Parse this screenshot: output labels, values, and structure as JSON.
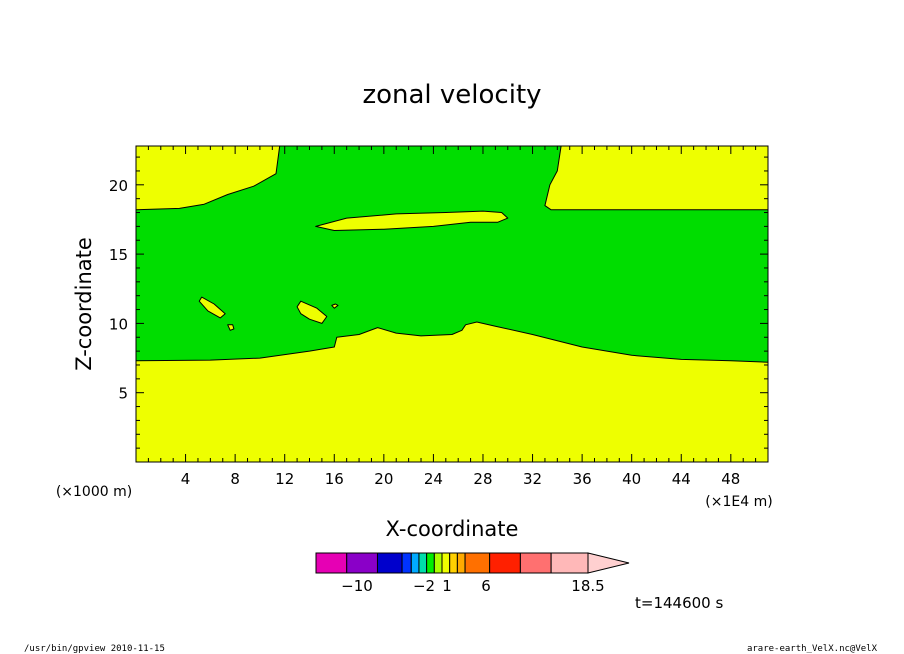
{
  "chart_data": {
    "type": "heatmap",
    "title": "zonal velocity",
    "xlabel": "X-coordinate",
    "ylabel": "Z-coordinate",
    "x_unit_label": "(×1E4 m)",
    "y_unit_label": "(×1000 m)",
    "x_range": [
      0,
      51
    ],
    "y_range": [
      0,
      22.8
    ],
    "x_ticks": [
      4,
      8,
      12,
      16,
      20,
      24,
      28,
      32,
      36,
      40,
      44,
      48
    ],
    "y_ticks": [
      5,
      10,
      15,
      20
    ],
    "time_label": "t=144600 s",
    "colors": {
      "low_band": "#eeff00",
      "mid_band": "#00dd00",
      "axis": "#000000"
    },
    "regions": [
      {
        "band": "low_band",
        "name": "lower-layer",
        "outline": [
          [
            0,
            0
          ],
          [
            0,
            7.3
          ],
          [
            6,
            7.35
          ],
          [
            10,
            7.5
          ],
          [
            14,
            8.0
          ],
          [
            16,
            8.3
          ],
          [
            16.2,
            9.0
          ],
          [
            18,
            9.2
          ],
          [
            19.5,
            9.7
          ],
          [
            21,
            9.3
          ],
          [
            23,
            9.1
          ],
          [
            25.5,
            9.2
          ],
          [
            26.3,
            9.5
          ],
          [
            26.6,
            9.9
          ],
          [
            27.5,
            10.1
          ],
          [
            29,
            9.8
          ],
          [
            32,
            9.2
          ],
          [
            36,
            8.3
          ],
          [
            40,
            7.7
          ],
          [
            44,
            7.4
          ],
          [
            48,
            7.3
          ],
          [
            51,
            7.2
          ],
          [
            51,
            0
          ]
        ]
      },
      {
        "band": "low_band",
        "name": "upper-left",
        "outline": [
          [
            0,
            22.8
          ],
          [
            11.6,
            22.8
          ],
          [
            11.3,
            20.8
          ],
          [
            9.5,
            19.9
          ],
          [
            7.4,
            19.3
          ],
          [
            5.5,
            18.6
          ],
          [
            3.5,
            18.3
          ],
          [
            0,
            18.2
          ]
        ]
      },
      {
        "band": "low_band",
        "name": "upper-right",
        "outline": [
          [
            34.3,
            22.8
          ],
          [
            51,
            22.8
          ],
          [
            51,
            18.2
          ],
          [
            33.5,
            18.2
          ],
          [
            33.0,
            18.5
          ],
          [
            33.4,
            20.0
          ],
          [
            34.0,
            21.0
          ]
        ]
      },
      {
        "band": "low_band",
        "name": "elongated-cell",
        "outline": [
          [
            14.5,
            17.0
          ],
          [
            17,
            17.6
          ],
          [
            21,
            17.9
          ],
          [
            25,
            18.0
          ],
          [
            28,
            18.1
          ],
          [
            29.5,
            18.0
          ],
          [
            30,
            17.6
          ],
          [
            29.2,
            17.3
          ],
          [
            27,
            17.3
          ],
          [
            24,
            17.0
          ],
          [
            20,
            16.8
          ],
          [
            16,
            16.7
          ]
        ]
      },
      {
        "band": "low_band",
        "name": "small-cell-a",
        "outline": [
          [
            5.3,
            11.9
          ],
          [
            5.1,
            11.6
          ],
          [
            5.8,
            10.9
          ],
          [
            6.8,
            10.4
          ],
          [
            7.2,
            10.7
          ],
          [
            6.3,
            11.4
          ]
        ]
      },
      {
        "band": "low_band",
        "name": "small-cell-b",
        "outline": [
          [
            7.4,
            9.9
          ],
          [
            7.8,
            9.9
          ],
          [
            7.9,
            9.6
          ],
          [
            7.6,
            9.5
          ]
        ]
      },
      {
        "band": "low_band",
        "name": "small-cell-c",
        "outline": [
          [
            13.3,
            11.6
          ],
          [
            13.0,
            11.2
          ],
          [
            13.3,
            10.7
          ],
          [
            14.0,
            10.3
          ],
          [
            15.0,
            10.0
          ],
          [
            15.4,
            10.5
          ],
          [
            14.6,
            11.1
          ]
        ]
      },
      {
        "band": "low_band",
        "name": "small-cell-d",
        "outline": [
          [
            15.8,
            11.3
          ],
          [
            16.1,
            11.4
          ],
          [
            16.3,
            11.3
          ],
          [
            16.0,
            11.1
          ]
        ]
      }
    ]
  },
  "colorbar": {
    "tick_labels": [
      {
        "value": -10,
        "text": "−10"
      },
      {
        "value": -2,
        "text": "−2"
      },
      {
        "value": 1,
        "text": "1"
      },
      {
        "value": 6,
        "text": "6"
      },
      {
        "value": 18.5,
        "text": "18.5"
      }
    ],
    "segments": [
      {
        "color": "#e600b4",
        "weight": 2
      },
      {
        "color": "#8a00c8",
        "weight": 2
      },
      {
        "color": "#0000cc",
        "weight": 1.6
      },
      {
        "color": "#0033ff",
        "weight": 0.6
      },
      {
        "color": "#00aaff",
        "weight": 0.5
      },
      {
        "color": "#00ddaa",
        "weight": 0.5
      },
      {
        "color": "#00ee00",
        "weight": 0.5
      },
      {
        "color": "#aaff00",
        "weight": 0.5
      },
      {
        "color": "#eeff00",
        "weight": 0.5
      },
      {
        "color": "#ffd000",
        "weight": 0.5
      },
      {
        "color": "#ffaa00",
        "weight": 0.5
      },
      {
        "color": "#ff7000",
        "weight": 1.6
      },
      {
        "color": "#ff2000",
        "weight": 2
      },
      {
        "color": "#ff7070",
        "weight": 2
      },
      {
        "color": "#ffb8b8",
        "weight": 2.4
      }
    ],
    "arrow_color": "#ffd0d0"
  },
  "footer": {
    "left": "/usr/bin/gpview   2010-11-15",
    "right": "arare-earth_VelX.nc@VelX"
  }
}
